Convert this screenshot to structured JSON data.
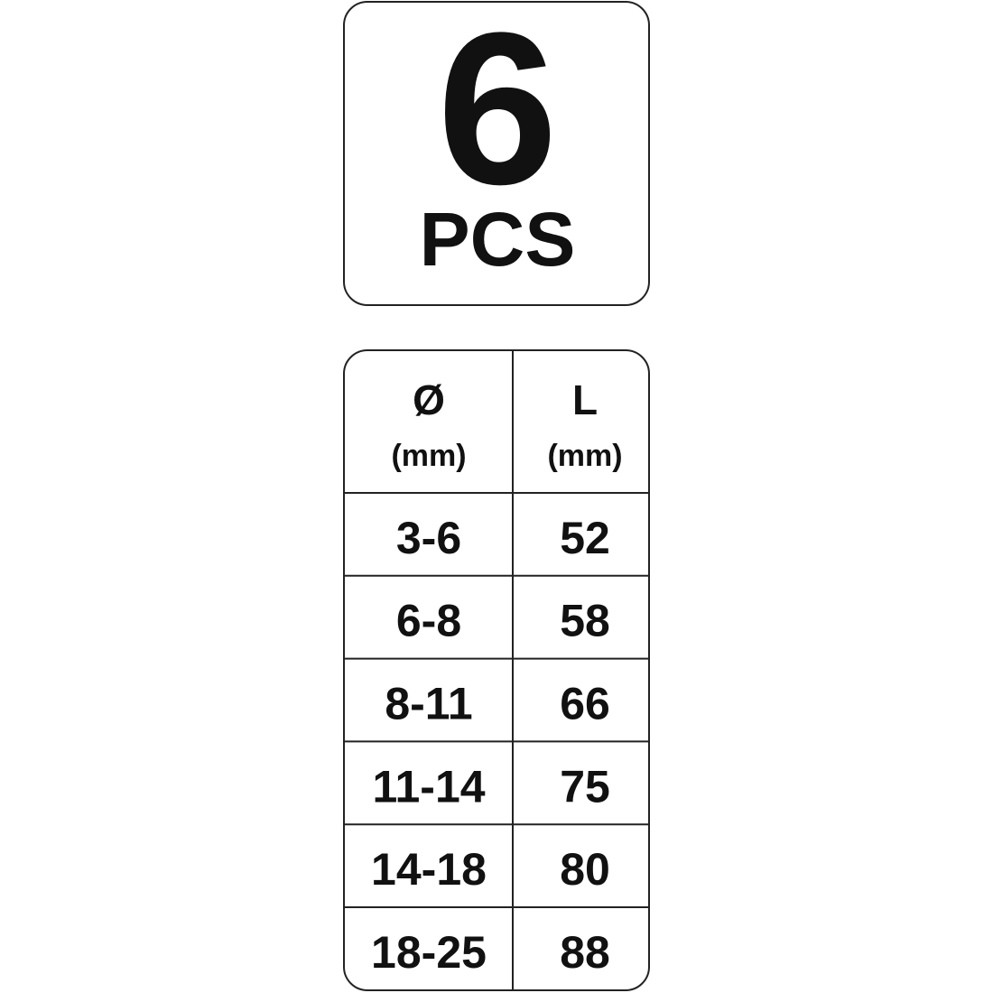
{
  "badge": {
    "count": "6",
    "unit": "PCS"
  },
  "table": {
    "header": [
      {
        "symbol": "Ø",
        "unit": "(mm)"
      },
      {
        "symbol": "L",
        "unit": "(mm)"
      }
    ],
    "rows": [
      [
        "3-6",
        "52"
      ],
      [
        "6-8",
        "58"
      ],
      [
        "8-11",
        "66"
      ],
      [
        "11-14",
        "75"
      ],
      [
        "14-18",
        "80"
      ],
      [
        "18-25",
        "88"
      ]
    ]
  }
}
